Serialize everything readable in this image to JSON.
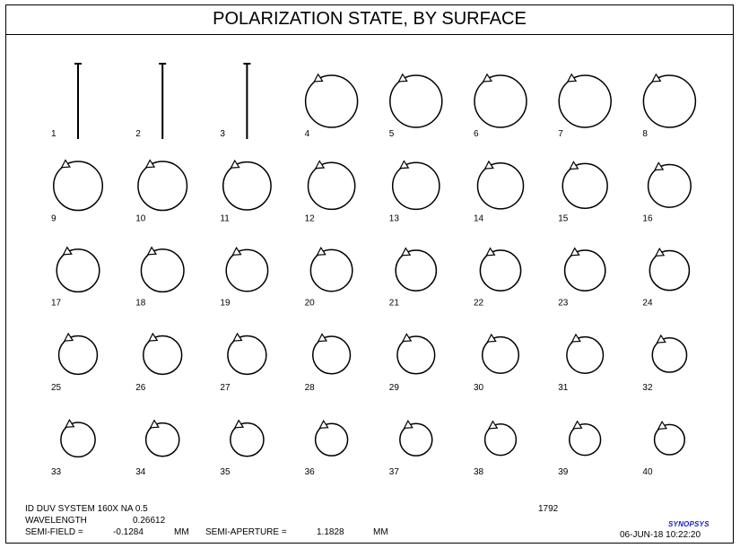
{
  "chart_data": {
    "type": "polarization-ellipse-grid",
    "title": "POLARIZATION STATE, BY SURFACE",
    "surfaces": [
      {
        "label": "1",
        "shape": "line",
        "size": 1.0
      },
      {
        "label": "2",
        "shape": "line",
        "size": 1.0
      },
      {
        "label": "3",
        "shape": "line",
        "size": 1.0
      },
      {
        "label": "4",
        "shape": "circle",
        "size": 1.0
      },
      {
        "label": "5",
        "shape": "circle",
        "size": 1.0
      },
      {
        "label": "6",
        "shape": "circle",
        "size": 1.0
      },
      {
        "label": "7",
        "shape": "circle",
        "size": 1.0
      },
      {
        "label": "8",
        "shape": "circle",
        "size": 1.0
      },
      {
        "label": "9",
        "shape": "circle",
        "size": 0.94
      },
      {
        "label": "10",
        "shape": "circle",
        "size": 0.94
      },
      {
        "label": "11",
        "shape": "circle",
        "size": 0.92
      },
      {
        "label": "12",
        "shape": "circle",
        "size": 0.9
      },
      {
        "label": "13",
        "shape": "circle",
        "size": 0.9
      },
      {
        "label": "14",
        "shape": "circle",
        "size": 0.88
      },
      {
        "label": "15",
        "shape": "circle",
        "size": 0.86
      },
      {
        "label": "16",
        "shape": "circle",
        "size": 0.82
      },
      {
        "label": "17",
        "shape": "circle",
        "size": 0.82
      },
      {
        "label": "18",
        "shape": "circle",
        "size": 0.82
      },
      {
        "label": "19",
        "shape": "circle",
        "size": 0.8
      },
      {
        "label": "20",
        "shape": "circle",
        "size": 0.8
      },
      {
        "label": "21",
        "shape": "circle",
        "size": 0.78
      },
      {
        "label": "22",
        "shape": "circle",
        "size": 0.78
      },
      {
        "label": "23",
        "shape": "circle",
        "size": 0.78
      },
      {
        "label": "24",
        "shape": "circle",
        "size": 0.76
      },
      {
        "label": "25",
        "shape": "circle",
        "size": 0.74
      },
      {
        "label": "26",
        "shape": "circle",
        "size": 0.74
      },
      {
        "label": "27",
        "shape": "circle",
        "size": 0.74
      },
      {
        "label": "28",
        "shape": "circle",
        "size": 0.72
      },
      {
        "label": "29",
        "shape": "circle",
        "size": 0.72
      },
      {
        "label": "30",
        "shape": "circle",
        "size": 0.7
      },
      {
        "label": "31",
        "shape": "circle",
        "size": 0.7
      },
      {
        "label": "32",
        "shape": "circle",
        "size": 0.66
      },
      {
        "label": "33",
        "shape": "circle",
        "size": 0.66
      },
      {
        "label": "34",
        "shape": "circle",
        "size": 0.64
      },
      {
        "label": "35",
        "shape": "circle",
        "size": 0.64
      },
      {
        "label": "36",
        "shape": "circle",
        "size": 0.62
      },
      {
        "label": "37",
        "shape": "circle",
        "size": 0.62
      },
      {
        "label": "38",
        "shape": "circle",
        "size": 0.6
      },
      {
        "label": "39",
        "shape": "circle",
        "size": 0.6
      },
      {
        "label": "40",
        "shape": "circle",
        "size": 0.58
      }
    ],
    "columns": 8,
    "grid": false
  },
  "footer": {
    "system_name": "ID DUV SYSTEM 160X NA 0.5",
    "id_number": "1792",
    "wavelength_label": "WAVELENGTH",
    "wavelength_value": "0.26612",
    "semi_field_label": "SEMI-FIELD =",
    "semi_field_value": "-0.1284",
    "semi_field_unit": "MM",
    "semi_aperture_label": "SEMI-APERTURE =",
    "semi_aperture_value": "1.1828",
    "semi_aperture_unit": "MM",
    "brand": "SYNOPSYS",
    "datetime": "06-JUN-18  10:22:20"
  },
  "colors": {
    "ink": "#000000",
    "brand": "#1a1acc"
  }
}
